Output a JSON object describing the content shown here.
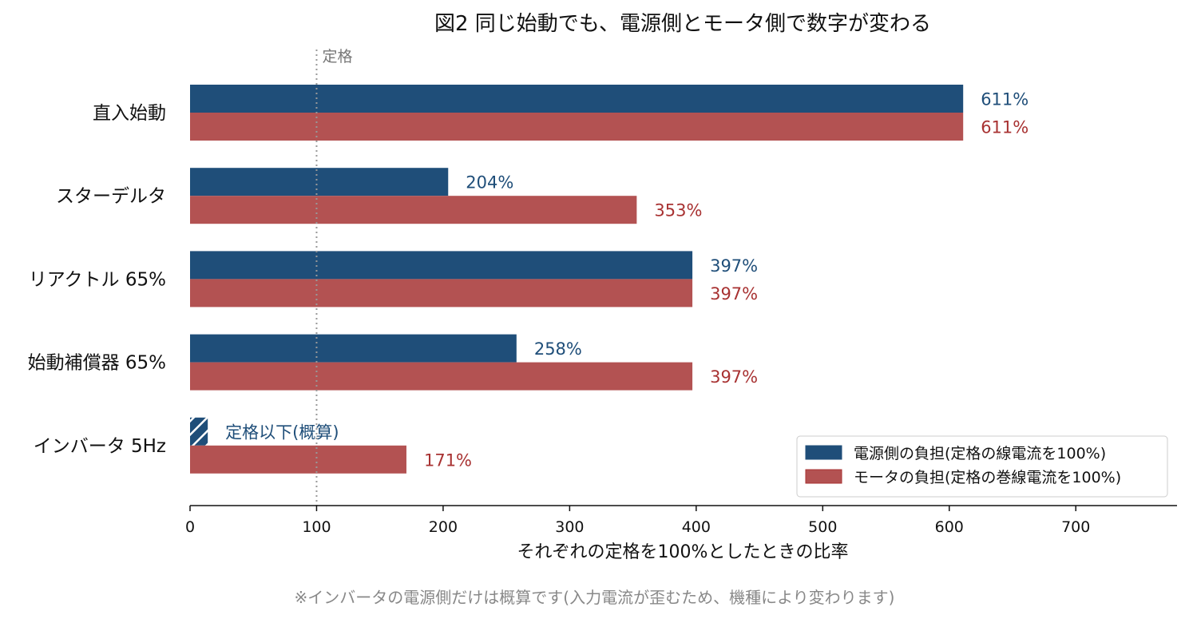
{
  "chart_data": {
    "type": "bar",
    "orientation": "horizontal",
    "title": "図2 同じ始動でも、電源側とモータ側で数字が変わる",
    "xlabel": "それぞれの定格を100%としたときの比率",
    "xlim": [
      0,
      780
    ],
    "xticks": [
      0,
      100,
      200,
      300,
      400,
      500,
      600,
      700
    ],
    "categories": [
      "直入始動",
      "スターデルタ",
      "リアクトル 65%",
      "始動補償器 65%",
      "インバータ 5Hz"
    ],
    "series": [
      {
        "name": "電源側の負担(定格の線電流を100%)",
        "color": "#1f4e79",
        "values": [
          611,
          204,
          397,
          258,
          14
        ],
        "labels": [
          "611%",
          "204%",
          "397%",
          "258%",
          "定格以下(概算)"
        ],
        "hatched": [
          false,
          false,
          false,
          false,
          true
        ]
      },
      {
        "name": "モータの負担(定格の巻線電流を100%)",
        "color": "#b35252",
        "label_color": "#a83232",
        "values": [
          611,
          353,
          397,
          397,
          171
        ],
        "labels": [
          "611%",
          "353%",
          "397%",
          "397%",
          "171%"
        ],
        "hatched": [
          false,
          false,
          false,
          false,
          false
        ]
      }
    ],
    "reference_line": {
      "x": 100,
      "label": "定格",
      "style": "dotted",
      "color": "#999999"
    },
    "legend_position": "bottom-right",
    "grid": false
  },
  "footnote": "※インバータの電源側だけは概算です(入力電流が歪むため、機種により変わります)"
}
